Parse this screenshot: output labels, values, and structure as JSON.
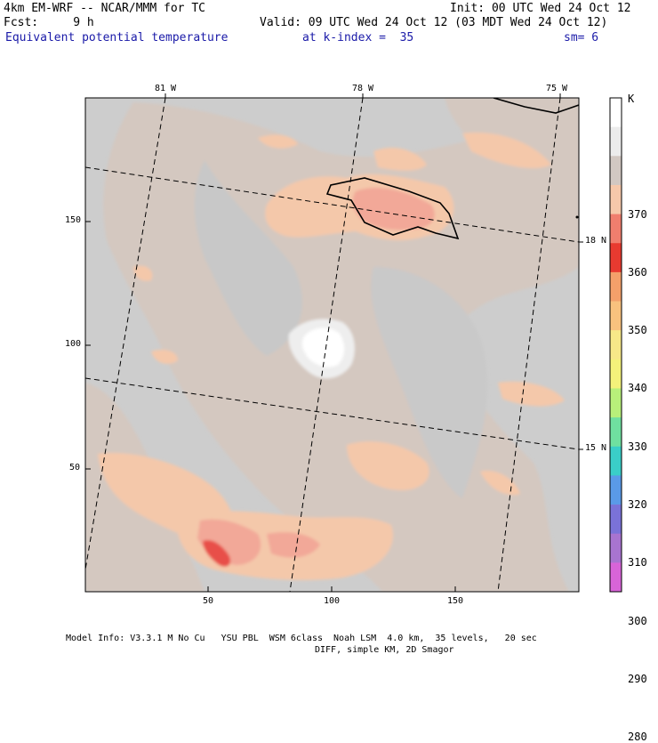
{
  "header": {
    "model_line": "4km EM-WRF -- NCAR/MMM for TC",
    "fcst_line": "Fcst:     9 h",
    "init_line": "Init: 00 UTC Wed 24 Oct 12",
    "valid_line": "Valid: 09 UTC Wed 24 Oct 12 (03 MDT Wed 24 Oct 12)",
    "field_name": "Equivalent potential temperature",
    "level": "at k-index =  35",
    "smoothing": "sm= 6"
  },
  "map": {
    "longitude_labels": [
      "81 W",
      "78 W",
      "75 W"
    ],
    "latitude_labels": [
      "18 N",
      "15 N"
    ],
    "x_ticks": [
      "50",
      "100",
      "150"
    ],
    "y_ticks": [
      "150",
      "100",
      "50"
    ]
  },
  "colorbar": {
    "unit": "K",
    "levels": [
      "370",
      "360",
      "350",
      "340",
      "330",
      "320",
      "310",
      "300",
      "290",
      "280"
    ],
    "colors": [
      "#ffffff",
      "#ececec",
      "#d2c8c2",
      "#f6c8aa",
      "#f07e6e",
      "#e83a30",
      "#f4a06a",
      "#f9c27e",
      "#f7e888",
      "#f4f27a",
      "#b8f07a",
      "#6fe0a0",
      "#3acec8",
      "#5a9ae8",
      "#7a72d8",
      "#a874d0",
      "#d864d8"
    ]
  },
  "footer": {
    "line1": "Model Info: V3.3.1 M No Cu   YSU PBL  WSM 6class  Noah LSM  4.0 km,  35 levels,   20 sec",
    "line2": "DIFF, simple KM, 2D Smagor"
  }
}
